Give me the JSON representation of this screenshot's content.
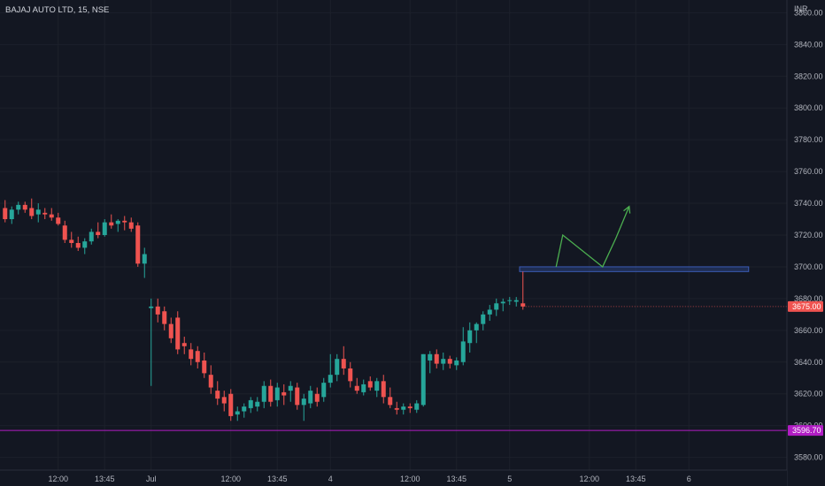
{
  "header": {
    "symbol_title": "BAJAJ AUTO LTD, 15, NSE"
  },
  "price_axis": {
    "currency": "INR"
  },
  "chart_data": {
    "type": "candlestick",
    "ylim": [
      3572,
      3868
    ],
    "y_ticks": [
      3580,
      3600,
      3620,
      3640,
      3660,
      3680,
      3700,
      3720,
      3740,
      3760,
      3780,
      3800,
      3820,
      3840,
      3860
    ],
    "y_tick_labels": [
      "3580.00",
      "3600.00",
      "3620.00",
      "3640.00",
      "3660.00",
      "3680.00",
      "3700.00",
      "3720.00",
      "3740.00",
      "3760.00",
      "3780.00",
      "3800.00",
      "3820.00",
      "3840.00",
      "3860.00"
    ],
    "x_labels": [
      {
        "label": "12:00",
        "bar": 8
      },
      {
        "label": "13:45",
        "bar": 15
      },
      {
        "label": "Jul",
        "bar": 22
      },
      {
        "label": "12:00",
        "bar": 34
      },
      {
        "label": "13:45",
        "bar": 41
      },
      {
        "label": "4",
        "bar": 49
      },
      {
        "label": "12:00",
        "bar": 61
      },
      {
        "label": "13:45",
        "bar": 68
      },
      {
        "label": "5",
        "bar": 76
      },
      {
        "label": "12:00",
        "bar": 88
      },
      {
        "label": "13:45",
        "bar": 95
      },
      {
        "label": "6",
        "bar": 103
      }
    ],
    "candles": [
      [
        3737,
        3742,
        3728,
        3730
      ],
      [
        3730,
        3738,
        3727,
        3736
      ],
      [
        3736,
        3741,
        3733,
        3739
      ],
      [
        3739,
        3741,
        3734,
        3736
      ],
      [
        3737,
        3743,
        3730,
        3732
      ],
      [
        3733,
        3740,
        3728,
        3736
      ],
      [
        3734,
        3737,
        3730,
        3733
      ],
      [
        3733,
        3737,
        3729,
        3731
      ],
      [
        3731,
        3734,
        3726,
        3727
      ],
      [
        3726,
        3729,
        3715,
        3717
      ],
      [
        3717,
        3722,
        3712,
        3715
      ],
      [
        3715,
        3719,
        3710,
        3712
      ],
      [
        3712,
        3718,
        3708,
        3716
      ],
      [
        3716,
        3724,
        3714,
        3722
      ],
      [
        3722,
        3728,
        3718,
        3720
      ],
      [
        3720,
        3730,
        3719,
        3728
      ],
      [
        3728,
        3733,
        3724,
        3726
      ],
      [
        3727,
        3730,
        3722,
        3729
      ],
      [
        3729,
        3732,
        3723,
        3728
      ],
      [
        3728,
        3731,
        3722,
        3724
      ],
      [
        3726,
        3728,
        3700,
        3702
      ],
      [
        3702,
        3712,
        3693,
        3708
      ],
      [
        3674,
        3680,
        3625,
        3675
      ],
      [
        3675,
        3680,
        3665,
        3670
      ],
      [
        3672,
        3675,
        3660,
        3664
      ],
      [
        3664,
        3668,
        3652,
        3655
      ],
      [
        3668,
        3672,
        3645,
        3648
      ],
      [
        3652,
        3656,
        3645,
        3650
      ],
      [
        3648,
        3652,
        3638,
        3642
      ],
      [
        3647,
        3650,
        3636,
        3640
      ],
      [
        3641,
        3646,
        3630,
        3633
      ],
      [
        3632,
        3638,
        3620,
        3624
      ],
      [
        3622,
        3628,
        3613,
        3617
      ],
      [
        3618,
        3622,
        3609,
        3614
      ],
      [
        3620,
        3623,
        3603,
        3606
      ],
      [
        3607,
        3612,
        3603,
        3609
      ],
      [
        3609,
        3614,
        3605,
        3612
      ],
      [
        3611,
        3618,
        3608,
        3616
      ],
      [
        3612,
        3618,
        3609,
        3615
      ],
      [
        3615,
        3628,
        3611,
        3625
      ],
      [
        3625,
        3629,
        3612,
        3615
      ],
      [
        3616,
        3627,
        3612,
        3624
      ],
      [
        3621,
        3626,
        3613,
        3619
      ],
      [
        3622,
        3628,
        3615,
        3625
      ],
      [
        3624,
        3627,
        3610,
        3613
      ],
      [
        3613,
        3620,
        3603,
        3617
      ],
      [
        3614,
        3625,
        3611,
        3622
      ],
      [
        3620,
        3624,
        3612,
        3615
      ],
      [
        3618,
        3630,
        3615,
        3627
      ],
      [
        3627,
        3645,
        3624,
        3632
      ],
      [
        3632,
        3645,
        3628,
        3642
      ],
      [
        3642,
        3650,
        3632,
        3636
      ],
      [
        3636,
        3640,
        3624,
        3628
      ],
      [
        3625,
        3630,
        3620,
        3622
      ],
      [
        3621,
        3629,
        3619,
        3626
      ],
      [
        3628,
        3631,
        3622,
        3624
      ],
      [
        3622,
        3630,
        3618,
        3628
      ],
      [
        3628,
        3632,
        3614,
        3618
      ],
      [
        3618,
        3624,
        3611,
        3613
      ],
      [
        3611,
        3615,
        3607,
        3610
      ],
      [
        3610,
        3614,
        3607,
        3612
      ],
      [
        3612,
        3614,
        3608,
        3611
      ],
      [
        3610,
        3616,
        3608,
        3614
      ],
      [
        3613,
        3645,
        3612,
        3645
      ],
      [
        3641,
        3647,
        3633,
        3645
      ],
      [
        3645,
        3648,
        3636,
        3639
      ],
      [
        3639,
        3646,
        3635,
        3642
      ],
      [
        3642,
        3644,
        3636,
        3639
      ],
      [
        3638,
        3643,
        3635,
        3641
      ],
      [
        3640,
        3662,
        3638,
        3653
      ],
      [
        3652,
        3665,
        3646,
        3660
      ],
      [
        3660,
        3665,
        3652,
        3664
      ],
      [
        3664,
        3672,
        3660,
        3670
      ],
      [
        3670,
        3676,
        3666,
        3673
      ],
      [
        3673,
        3680,
        3669,
        3677
      ],
      [
        3677,
        3680,
        3672,
        3678
      ],
      [
        3679,
        3681,
        3676,
        3679
      ],
      [
        3678,
        3681,
        3675,
        3679
      ],
      [
        3677,
        3697,
        3673,
        3675
      ]
    ],
    "bullish_color": "#26a69a",
    "bearish_color": "#ef5350",
    "last_price": {
      "value": 3675,
      "label": "3675.00",
      "color": "#ef5350"
    },
    "horizontal_line": {
      "value": 3597,
      "label": "3596.70",
      "color": "#b11dc4"
    },
    "zone_rectangle": {
      "from_bar": 78,
      "to_bar": 112,
      "y_top": 3700,
      "y_bottom": 3697,
      "color": "#2a3f7a"
    },
    "projection_path": {
      "color": "#4caf50",
      "points": [
        [
          83,
          3700
        ],
        [
          84,
          3720
        ],
        [
          90,
          3700
        ],
        [
          92,
          3718
        ],
        [
          94,
          3738
        ]
      ]
    }
  }
}
